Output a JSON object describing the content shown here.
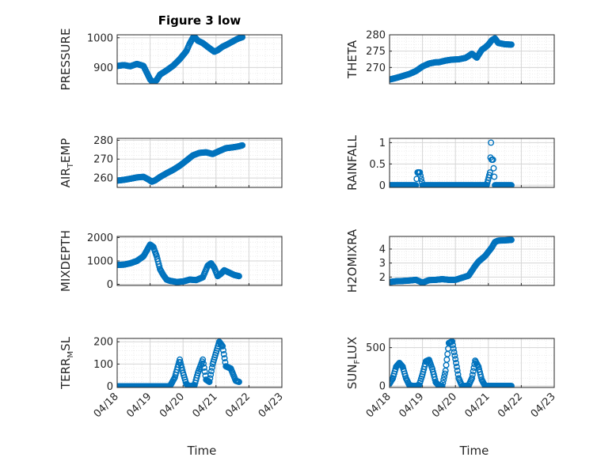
{
  "figure": {
    "title": "Figure 3 low",
    "xlabel": "Time",
    "marker_color": "#0072BD"
  },
  "chart_data": [
    {
      "type": "scatter",
      "title": "Figure 3 low",
      "ylabel": "PRESSURE",
      "ylim": [
        845,
        1010
      ],
      "yticks": [
        900,
        1000
      ],
      "ytick_labels": [
        "900",
        "1000"
      ],
      "x": [
        0,
        0.2,
        0.4,
        0.6,
        0.8,
        1.0,
        1.1,
        1.2,
        1.3,
        1.5,
        1.7,
        1.9,
        2.1,
        2.2,
        2.3,
        2.35,
        2.45,
        2.6,
        2.8,
        2.95,
        3.05,
        3.2,
        3.35,
        3.5,
        3.65,
        3.8
      ],
      "y": [
        905,
        908,
        904,
        912,
        905,
        860,
        848,
        858,
        876,
        890,
        906,
        928,
        955,
        980,
        1000,
        1003,
        990,
        982,
        965,
        953,
        958,
        970,
        978,
        987,
        996,
        1002
      ]
    },
    {
      "type": "scatter",
      "ylabel": "THETA",
      "ylim": [
        265,
        280
      ],
      "yticks": [
        270,
        275,
        280
      ],
      "ytick_labels": [
        "270",
        "275",
        "280"
      ],
      "x": [
        0,
        0.2,
        0.4,
        0.6,
        0.8,
        1.0,
        1.2,
        1.4,
        1.5,
        1.7,
        1.9,
        2.1,
        2.3,
        2.4,
        2.5,
        2.65,
        2.8,
        2.9,
        3.0,
        3.1,
        3.2,
        3.3,
        3.5,
        3.7
      ],
      "y": [
        266.3,
        266.8,
        267.4,
        268.0,
        268.9,
        270.3,
        271.2,
        271.6,
        271.6,
        272.1,
        272.4,
        272.5,
        272.9,
        273.5,
        274.2,
        273.0,
        275.4,
        276.1,
        277.0,
        278.3,
        278.9,
        277.5,
        277.1,
        277.0
      ]
    },
    {
      "type": "scatter",
      "ylabel": "AIR_TEMP",
      "ylim": [
        255,
        281
      ],
      "yticks": [
        260,
        270,
        280
      ],
      "ytick_labels": [
        "260",
        "270",
        "280"
      ],
      "x": [
        0,
        0.2,
        0.4,
        0.6,
        0.8,
        0.95,
        1.05,
        1.15,
        1.3,
        1.5,
        1.7,
        1.9,
        2.1,
        2.3,
        2.5,
        2.7,
        2.9,
        3.1,
        3.3,
        3.5,
        3.7,
        3.8
      ],
      "y": [
        258.6,
        259.0,
        259.6,
        260.3,
        260.6,
        259.2,
        258.0,
        258.7,
        260.5,
        262.5,
        264.3,
        266.5,
        269.2,
        272.0,
        273.3,
        273.6,
        272.7,
        274.3,
        275.8,
        276.2,
        276.8,
        277.3
      ]
    },
    {
      "type": "scatter",
      "ylabel": "RAINFALL",
      "ylim": [
        -0.05,
        1.1
      ],
      "yticks": [
        0,
        0.5,
        1
      ],
      "ytick_labels": [
        "0",
        "0.5",
        "1"
      ],
      "x": [
        0,
        0.2,
        0.4,
        0.6,
        0.8,
        0.85,
        0.88,
        0.92,
        1.0,
        1.2,
        1.5,
        1.8,
        2.1,
        2.4,
        2.7,
        2.95,
        3.05,
        3.08,
        3.1,
        3.12,
        3.14,
        3.2,
        3.4,
        3.7
      ],
      "y": [
        0,
        0,
        0,
        0,
        0,
        0.3,
        0.3,
        0.3,
        0,
        0,
        0,
        0,
        0,
        0,
        0,
        0,
        0.3,
        1.0,
        0.6,
        0.6,
        0.6,
        0,
        0,
        0
      ]
    },
    {
      "type": "scatter",
      "ylabel": "MIXDEPTH",
      "ylim": [
        -50,
        2050
      ],
      "yticks": [
        0,
        1000,
        2000
      ],
      "ytick_labels": [
        "0",
        "1000",
        "2000"
      ],
      "x": [
        0,
        0.2,
        0.4,
        0.6,
        0.8,
        0.9,
        1.0,
        1.1,
        1.15,
        1.2,
        1.3,
        1.4,
        1.5,
        1.6,
        1.8,
        2.0,
        2.2,
        2.4,
        2.6,
        2.75,
        2.85,
        2.95,
        3.05,
        3.15,
        3.25,
        3.4,
        3.55,
        3.7
      ],
      "y": [
        830,
        840,
        900,
        1000,
        1200,
        1450,
        1700,
        1600,
        1400,
        1200,
        650,
        400,
        200,
        150,
        100,
        120,
        200,
        180,
        300,
        800,
        900,
        700,
        350,
        450,
        600,
        500,
        400,
        350
      ]
    },
    {
      "type": "scatter",
      "ylabel": "H2OMIXRA",
      "ylim": [
        1.4,
        4.9
      ],
      "yticks": [
        2,
        3,
        4
      ],
      "ytick_labels": [
        "2",
        "3",
        "4"
      ],
      "x": [
        0,
        0.2,
        0.4,
        0.6,
        0.8,
        1.0,
        1.2,
        1.4,
        1.6,
        1.8,
        2.0,
        2.2,
        2.4,
        2.6,
        2.7,
        2.8,
        2.9,
        3.0,
        3.1,
        3.2,
        3.3,
        3.5,
        3.7
      ],
      "y": [
        1.65,
        1.7,
        1.72,
        1.75,
        1.8,
        1.6,
        1.78,
        1.8,
        1.85,
        1.8,
        1.8,
        1.95,
        2.1,
        2.8,
        3.1,
        3.3,
        3.5,
        3.8,
        4.1,
        4.5,
        4.6,
        4.62,
        4.65
      ]
    },
    {
      "type": "scatter",
      "ylabel": "TERR_MSL",
      "ylim": [
        -5,
        215
      ],
      "yticks": [
        0,
        100,
        200
      ],
      "ytick_labels": [
        "0",
        "100",
        "200"
      ],
      "x": [
        0,
        0.3,
        0.6,
        1.0,
        1.3,
        1.6,
        1.75,
        1.9,
        2.0,
        2.1,
        2.2,
        2.35,
        2.45,
        2.6,
        2.7,
        2.8,
        2.9,
        3.0,
        3.1,
        3.2,
        3.3,
        3.45,
        3.6,
        3.7
      ],
      "y": [
        0,
        0,
        0,
        0,
        0,
        0,
        40,
        120,
        60,
        10,
        0,
        5,
        60,
        120,
        30,
        20,
        100,
        150,
        200,
        180,
        90,
        80,
        25,
        20
      ]
    },
    {
      "type": "scatter",
      "ylabel": "SUN_FLUX",
      "ylim": [
        -20,
        620
      ],
      "yticks": [
        0,
        500
      ],
      "ytick_labels": [
        "0",
        "500"
      ],
      "x": [
        0,
        0.1,
        0.2,
        0.3,
        0.4,
        0.5,
        0.6,
        0.7,
        0.8,
        0.9,
        1.0,
        1.1,
        1.2,
        1.3,
        1.4,
        1.5,
        1.6,
        1.7,
        1.8,
        1.9,
        2.0,
        2.1,
        2.2,
        2.3,
        2.4,
        2.5,
        2.6,
        2.7,
        2.8,
        2.9,
        3.0,
        3.1,
        3.2,
        3.3,
        3.4,
        3.5,
        3.6,
        3.7
      ],
      "y": [
        30,
        100,
        250,
        300,
        250,
        100,
        10,
        0,
        0,
        10,
        150,
        320,
        340,
        220,
        50,
        0,
        0,
        200,
        560,
        580,
        350,
        100,
        0,
        0,
        5,
        100,
        330,
        250,
        80,
        0,
        0,
        0,
        0,
        0,
        0,
        0,
        0,
        0
      ]
    }
  ],
  "x_axis": {
    "ticks": [
      0,
      1,
      2,
      3,
      4,
      5
    ],
    "tick_labels": [
      "04/18",
      "04/19",
      "04/20",
      "04/21",
      "04/22",
      "04/23"
    ],
    "xlim": [
      0,
      5
    ]
  }
}
